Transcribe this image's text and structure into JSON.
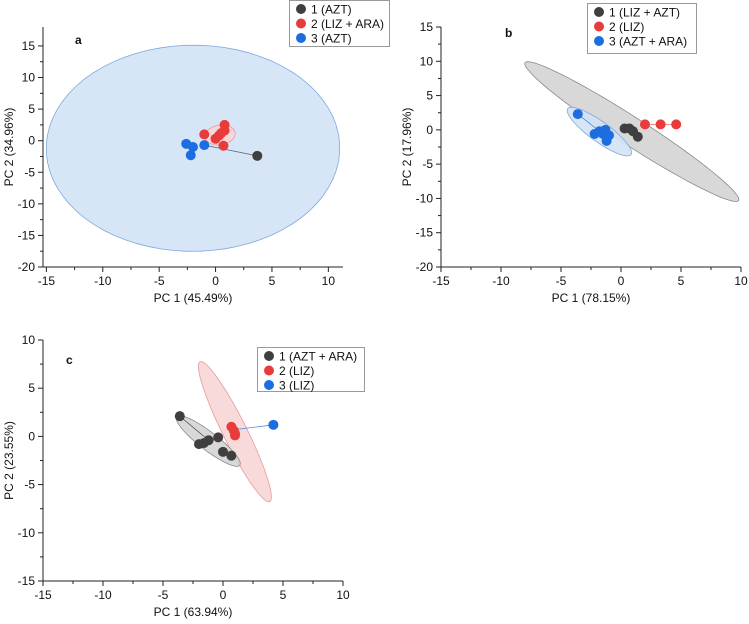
{
  "colors": {
    "group1": "#3f3f3f",
    "group2": "#e83b3b",
    "group3": "#1c6ee0"
  },
  "chart_data": [
    {
      "type": "scatter",
      "panel_label": "a",
      "xlabel": "PC 1 (45.49%)",
      "ylabel": "PC 2 (34.96%)",
      "xlim": [
        -15.3,
        11.3
      ],
      "ylim": [
        -20,
        18
      ],
      "xticks": [
        -15,
        -10,
        -5,
        0,
        5,
        10
      ],
      "yticks": [
        -20,
        -15,
        -10,
        -5,
        0,
        5,
        10,
        15
      ],
      "legend_position": "top-right",
      "series": [
        {
          "name": "1 (AZT)",
          "color_key": "group1",
          "points": [
            [
              3.7,
              -2.4
            ]
          ]
        },
        {
          "name": "2 (LIZ + ARA)",
          "color_key": "group2",
          "points": [
            [
              -1.0,
              1.0
            ],
            [
              0.0,
              0.3
            ],
            [
              0.3,
              0.8
            ],
            [
              0.5,
              1.2
            ],
            [
              0.8,
              2.5
            ],
            [
              0.8,
              1.6
            ],
            [
              0.7,
              -0.8
            ]
          ]
        },
        {
          "name": "3 (AZT)",
          "color_key": "group3",
          "points": [
            [
              -2.6,
              -0.5
            ],
            [
              -2.0,
              -1.0
            ],
            [
              -2.2,
              -2.3
            ],
            [
              -1.0,
              -0.7
            ]
          ]
        }
      ],
      "ellipses": [
        {
          "color_key": "group3",
          "center": [
            -2.0,
            -1.2
          ],
          "u": [
            13.0,
            0.8
          ],
          "v": [
            -0.6,
            16.3
          ]
        },
        {
          "color_key": "group2",
          "center": [
            0.4,
            0.9
          ],
          "u": [
            1.2,
            0.9
          ],
          "v": [
            -0.6,
            1.3
          ]
        }
      ],
      "lines": [
        {
          "color_key": "group1",
          "from": [
            -1.0,
            -0.7
          ],
          "to": [
            3.7,
            -2.4
          ]
        }
      ]
    },
    {
      "type": "scatter",
      "panel_label": "b",
      "xlabel": "PC 1 (78.15%)",
      "ylabel": "PC 2 (17.96%)",
      "xlim": [
        -15,
        10
      ],
      "ylim": [
        -20,
        15
      ],
      "xticks": [
        -15,
        -10,
        -5,
        0,
        5,
        10
      ],
      "yticks": [
        -20,
        -15,
        -10,
        -5,
        0,
        5,
        10,
        15
      ],
      "legend_position": "top-right",
      "series": [
        {
          "name": "1 (LIZ + AZT)",
          "color_key": "group1",
          "points": [
            [
              0.3,
              0.2
            ],
            [
              0.7,
              0.2
            ],
            [
              1.0,
              -0.2
            ],
            [
              1.4,
              -1.0
            ]
          ]
        },
        {
          "name": "2 (LIZ)",
          "color_key": "group2",
          "points": [
            [
              2.0,
              0.8
            ],
            [
              3.3,
              0.8
            ],
            [
              4.6,
              0.8
            ]
          ]
        },
        {
          "name": "3 (AZT + ARA)",
          "color_key": "group3",
          "points": [
            [
              -3.6,
              2.3
            ],
            [
              -2.2,
              -0.6
            ],
            [
              -1.8,
              -0.2
            ],
            [
              -1.3,
              0.0
            ],
            [
              -1.0,
              -0.8
            ],
            [
              -1.2,
              -1.6
            ],
            [
              -1.5,
              -0.6
            ]
          ]
        }
      ],
      "ellipses": [
        {
          "color_key": "group1",
          "center": [
            0.9,
            -0.25
          ],
          "u": [
            8.9,
            -10.05
          ],
          "v": [
            -0.63,
            -1.72
          ]
        },
        {
          "color_key": "group3",
          "center": [
            -1.8,
            -0.25
          ],
          "u": [
            2.64,
            -3.35
          ],
          "v": [
            -0.49,
            -1.18
          ]
        }
      ],
      "lines": [
        {
          "color_key": "group2",
          "from": [
            2.0,
            0.8
          ],
          "to": [
            4.6,
            0.8
          ]
        },
        {
          "color_key": "group3",
          "from": [
            -3.6,
            2.3
          ],
          "to": [
            -1.5,
            -0.6
          ]
        }
      ]
    },
    {
      "type": "scatter",
      "panel_label": "c",
      "xlabel": "PC 1 (63.94%)",
      "ylabel": "PC 2 (23.55%)",
      "xlim": [
        -15,
        10
      ],
      "ylim": [
        -15,
        10
      ],
      "xticks": [
        -15,
        -10,
        -5,
        0,
        5,
        10
      ],
      "yticks": [
        -15,
        -10,
        -5,
        0,
        5,
        10
      ],
      "legend_position": "top-right",
      "series": [
        {
          "name": "1 (AZT + ARA)",
          "color_key": "group1",
          "points": [
            [
              -3.6,
              2.1
            ],
            [
              -2.0,
              -0.8
            ],
            [
              -1.6,
              -0.7
            ],
            [
              -1.2,
              -0.4
            ],
            [
              -0.4,
              -0.1
            ],
            [
              0.0,
              -1.6
            ],
            [
              0.7,
              -2.0
            ]
          ]
        },
        {
          "name": "2 (LIZ)",
          "color_key": "group2",
          "points": [
            [
              0.7,
              1.0
            ],
            [
              0.9,
              0.6
            ],
            [
              1.0,
              0.1
            ],
            [
              1.0,
              0.3
            ]
          ]
        },
        {
          "name": "3 (LIZ)",
          "color_key": "group3",
          "points": [
            [
              4.2,
              1.2
            ]
          ]
        }
      ],
      "ellipses": [
        {
          "color_key": "group2",
          "center": [
            0.99,
            0.49
          ],
          "u": [
            2.91,
            -7.26
          ],
          "v": [
            -0.89,
            -0.56
          ]
        },
        {
          "color_key": "group1",
          "center": [
            -1.23,
            -0.48
          ],
          "u": [
            2.63,
            -2.52
          ],
          "v": [
            -0.46,
            -0.74
          ]
        }
      ],
      "lines": [
        {
          "color_key": "group3",
          "from": [
            1.0,
            0.7
          ],
          "to": [
            4.2,
            1.2
          ]
        },
        {
          "color_key": "group1",
          "from": [
            -3.6,
            2.1
          ],
          "to": [
            -1.2,
            -0.4
          ]
        }
      ]
    }
  ]
}
